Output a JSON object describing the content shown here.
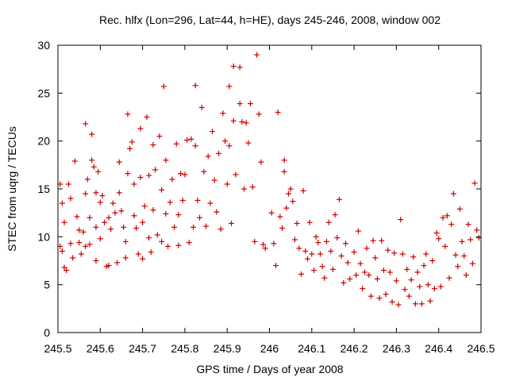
{
  "chart_data": {
    "type": "scatter",
    "title": "Rec. hlfx (Lon=296, Lat=44, h=HE), days 245-246, 2008, window 002",
    "xlabel": "GPS time / Days of year 2008",
    "ylabel": "STEC from uqrg / TECUs",
    "xlim": [
      245.5,
      246.5
    ],
    "ylim": [
      0,
      30
    ],
    "x_ticks": [
      "245.5",
      "245.6",
      "245.7",
      "245.8",
      "245.9",
      "246",
      "246.1",
      "246.2",
      "246.3",
      "246.4",
      "246.5"
    ],
    "y_ticks": [
      "0",
      "5",
      "10",
      "15",
      "20",
      "25",
      "30"
    ],
    "grid": false,
    "marker": "+",
    "color": "#cc0000",
    "series": [
      {
        "name": "",
        "points": [
          [
            245.505,
            15.5
          ],
          [
            245.51,
            13.5
          ],
          [
            245.515,
            11.5
          ],
          [
            245.505,
            9.0
          ],
          [
            245.51,
            8.5
          ],
          [
            245.515,
            6.8
          ],
          [
            245.52,
            6.5
          ],
          [
            245.525,
            15.5
          ],
          [
            245.53,
            14.0
          ],
          [
            245.53,
            9.3
          ],
          [
            245.535,
            7.8
          ],
          [
            245.54,
            17.9
          ],
          [
            245.545,
            12.1
          ],
          [
            245.55,
            10.7
          ],
          [
            245.55,
            9.4
          ],
          [
            245.555,
            8.2
          ],
          [
            245.56,
            10.5
          ],
          [
            245.565,
            21.8
          ],
          [
            245.565,
            14.5
          ],
          [
            245.565,
            9.0
          ],
          [
            245.57,
            16.0
          ],
          [
            245.575,
            12.0
          ],
          [
            245.575,
            9.2
          ],
          [
            245.58,
            20.7
          ],
          [
            245.58,
            18.0
          ],
          [
            245.585,
            17.3
          ],
          [
            245.59,
            14.6
          ],
          [
            245.59,
            11.0
          ],
          [
            245.59,
            7.5
          ],
          [
            245.595,
            16.8
          ],
          [
            245.6,
            13.6
          ],
          [
            245.6,
            9.8
          ],
          [
            245.605,
            14.3
          ],
          [
            245.61,
            11.5
          ],
          [
            245.615,
            6.9
          ],
          [
            245.62,
            12.0
          ],
          [
            245.62,
            7.0
          ],
          [
            245.625,
            10.8
          ],
          [
            245.63,
            13.5
          ],
          [
            245.635,
            12.5
          ],
          [
            245.64,
            7.3
          ],
          [
            245.645,
            17.8
          ],
          [
            245.645,
            14.6
          ],
          [
            245.65,
            12.7
          ],
          [
            245.655,
            11.0
          ],
          [
            245.66,
            9.5
          ],
          [
            245.66,
            7.8
          ],
          [
            245.665,
            22.8
          ],
          [
            245.665,
            16.6
          ],
          [
            245.67,
            19.2
          ],
          [
            245.675,
            19.9
          ],
          [
            245.68,
            15.5
          ],
          [
            245.68,
            12.2
          ],
          [
            245.685,
            10.9
          ],
          [
            245.69,
            8.2
          ],
          [
            245.695,
            21.3
          ],
          [
            245.695,
            16.2
          ],
          [
            245.7,
            11.5
          ],
          [
            245.7,
            7.7
          ],
          [
            245.705,
            13.2
          ],
          [
            245.71,
            22.5
          ],
          [
            245.715,
            16.4
          ],
          [
            245.715,
            9.9
          ],
          [
            245.72,
            8.4
          ],
          [
            245.725,
            19.6
          ],
          [
            245.725,
            12.8
          ],
          [
            245.73,
            17.0
          ],
          [
            245.735,
            10.2
          ],
          [
            245.74,
            20.5
          ],
          [
            245.745,
            14.9
          ],
          [
            245.745,
            9.5
          ],
          [
            245.75,
            25.7
          ],
          [
            245.755,
            18.0
          ],
          [
            245.755,
            12.4
          ],
          [
            245.76,
            9.0
          ],
          [
            245.765,
            13.6
          ],
          [
            245.77,
            16.0
          ],
          [
            245.775,
            11.0
          ],
          [
            245.78,
            19.7
          ],
          [
            245.785,
            12.3
          ],
          [
            245.785,
            9.1
          ],
          [
            245.79,
            16.6
          ],
          [
            245.795,
            13.8
          ],
          [
            245.8,
            16.5
          ],
          [
            245.805,
            20.1
          ],
          [
            245.81,
            9.4
          ],
          [
            245.815,
            20.2
          ],
          [
            245.82,
            11.0
          ],
          [
            245.825,
            25.8
          ],
          [
            245.825,
            19.5
          ],
          [
            245.83,
            13.8
          ],
          [
            245.835,
            12.0
          ],
          [
            245.84,
            23.5
          ],
          [
            245.845,
            16.8
          ],
          [
            245.85,
            11.1
          ],
          [
            245.855,
            18.4
          ],
          [
            245.86,
            13.5
          ],
          [
            245.865,
            21.0
          ],
          [
            245.87,
            15.9
          ],
          [
            245.875,
            12.6
          ],
          [
            245.88,
            18.7
          ],
          [
            245.885,
            10.8
          ],
          [
            245.89,
            22.9
          ],
          [
            245.895,
            20.0
          ],
          [
            245.9,
            15.5
          ],
          [
            245.905,
            25.7
          ],
          [
            245.905,
            19.5
          ],
          [
            245.91,
            11.4
          ],
          [
            245.915,
            27.8
          ],
          [
            245.915,
            22.1
          ],
          [
            245.92,
            16.5
          ],
          [
            245.93,
            27.7
          ],
          [
            245.93,
            23.9
          ],
          [
            245.935,
            22.0
          ],
          [
            245.94,
            15.0
          ],
          [
            245.945,
            21.9
          ],
          [
            245.95,
            19.8
          ],
          [
            245.955,
            23.9
          ],
          [
            245.96,
            15.2
          ],
          [
            245.965,
            9.5
          ],
          [
            245.97,
            29.0
          ],
          [
            245.975,
            22.8
          ],
          [
            245.98,
            17.8
          ],
          [
            245.985,
            9.2
          ],
          [
            245.99,
            8.8
          ],
          [
            246.005,
            12.5
          ],
          [
            246.01,
            9.3
          ],
          [
            246.015,
            7.0
          ],
          [
            246.02,
            23.0
          ],
          [
            246.025,
            12.1
          ],
          [
            246.03,
            10.9
          ],
          [
            246.035,
            18.0
          ],
          [
            246.035,
            16.8
          ],
          [
            246.04,
            13.0
          ],
          [
            246.045,
            14.5
          ],
          [
            246.05,
            15.0
          ],
          [
            246.055,
            13.7
          ],
          [
            246.06,
            9.7
          ],
          [
            246.065,
            11.4
          ],
          [
            246.07,
            8.8
          ],
          [
            246.075,
            6.1
          ],
          [
            246.08,
            14.8
          ],
          [
            246.085,
            8.5
          ],
          [
            246.09,
            7.7
          ],
          [
            246.095,
            11.5
          ],
          [
            246.1,
            8.2
          ],
          [
            246.105,
            6.5
          ],
          [
            246.11,
            10.0
          ],
          [
            246.115,
            9.4
          ],
          [
            246.12,
            8.2
          ],
          [
            246.125,
            6.9
          ],
          [
            246.13,
            5.7
          ],
          [
            246.135,
            9.5
          ],
          [
            246.14,
            11.5
          ],
          [
            246.145,
            8.5
          ],
          [
            246.15,
            6.6
          ],
          [
            246.155,
            12.3
          ],
          [
            246.16,
            9.9
          ],
          [
            246.165,
            13.9
          ],
          [
            246.17,
            8.0
          ],
          [
            246.175,
            5.2
          ],
          [
            246.18,
            9.3
          ],
          [
            246.185,
            7.3
          ],
          [
            246.19,
            5.6
          ],
          [
            246.2,
            8.4
          ],
          [
            246.205,
            6.0
          ],
          [
            246.21,
            10.6
          ],
          [
            246.215,
            7.2
          ],
          [
            246.22,
            4.6
          ],
          [
            246.225,
            6.3
          ],
          [
            246.23,
            8.8
          ],
          [
            246.235,
            6.0
          ],
          [
            246.24,
            3.8
          ],
          [
            246.245,
            9.6
          ],
          [
            246.25,
            7.8
          ],
          [
            246.255,
            5.6
          ],
          [
            246.26,
            3.6
          ],
          [
            246.265,
            9.6
          ],
          [
            246.27,
            6.5
          ],
          [
            246.275,
            4.0
          ],
          [
            246.28,
            8.6
          ],
          [
            246.285,
            6.3
          ],
          [
            246.29,
            3.2
          ],
          [
            246.295,
            8.3
          ],
          [
            246.3,
            5.4
          ],
          [
            246.305,
            2.9
          ],
          [
            246.31,
            11.8
          ],
          [
            246.315,
            8.2
          ],
          [
            246.32,
            4.5
          ],
          [
            246.325,
            6.6
          ],
          [
            246.33,
            3.8
          ],
          [
            246.335,
            5.5
          ],
          [
            246.34,
            7.9
          ],
          [
            246.345,
            3.0
          ],
          [
            246.35,
            6.3
          ],
          [
            246.355,
            4.8
          ],
          [
            246.36,
            3.0
          ],
          [
            246.365,
            7.0
          ],
          [
            246.37,
            8.2
          ],
          [
            246.375,
            5.0
          ],
          [
            246.38,
            3.3
          ],
          [
            246.385,
            7.5
          ],
          [
            246.39,
            4.6
          ],
          [
            246.395,
            10.4
          ],
          [
            246.4,
            9.8
          ],
          [
            246.405,
            4.8
          ],
          [
            246.41,
            12.0
          ],
          [
            246.415,
            9.0
          ],
          [
            246.42,
            12.2
          ],
          [
            246.425,
            5.7
          ],
          [
            246.43,
            11.3
          ],
          [
            246.435,
            14.5
          ],
          [
            246.44,
            8.1
          ],
          [
            246.445,
            6.9
          ],
          [
            246.45,
            12.9
          ],
          [
            246.455,
            9.5
          ],
          [
            246.46,
            8.0
          ],
          [
            246.465,
            6.0
          ],
          [
            246.47,
            11.3
          ],
          [
            246.475,
            9.7
          ],
          [
            246.48,
            7.2
          ],
          [
            246.485,
            15.6
          ],
          [
            246.49,
            10.7
          ],
          [
            246.495,
            9.9
          ]
        ]
      }
    ]
  }
}
